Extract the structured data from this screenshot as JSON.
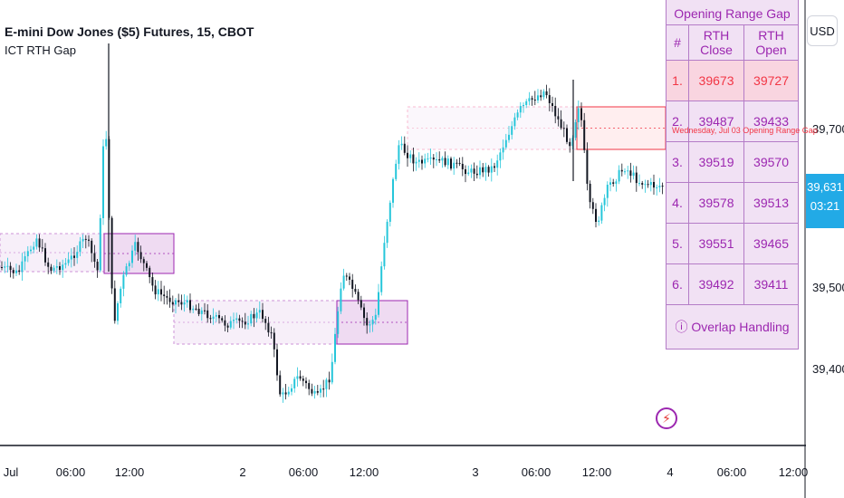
{
  "header": {
    "symbol": "E-mini Dow Jones ($5) Futures, 15, CBOT",
    "indicator": "ICT RTH Gap"
  },
  "price_axis": {
    "currency_button": "USD",
    "labels": [
      "39,700",
      "39,500",
      "39,400"
    ],
    "current_price": "39,631",
    "countdown": "03:21"
  },
  "time_axis": {
    "labels": [
      "Jul",
      "06:00",
      "12:00",
      "2",
      "06:00",
      "12:00",
      "3",
      "06:00",
      "12:00",
      "4",
      "06:00",
      "12:00"
    ]
  },
  "gap_table": {
    "title": "Opening Range Gap",
    "columns": [
      "#",
      "RTH Close",
      "RTH Open"
    ],
    "rows": [
      {
        "idx": "1.",
        "close": "39673",
        "open": "39727"
      },
      {
        "idx": "2.",
        "close": "39487",
        "open": "39433"
      },
      {
        "idx": "3.",
        "close": "39519",
        "open": "39570"
      },
      {
        "idx": "4.",
        "close": "39578",
        "open": "39513"
      },
      {
        "idx": "5.",
        "close": "39551",
        "open": "39465"
      },
      {
        "idx": "6.",
        "close": "39492",
        "open": "39411"
      }
    ],
    "footer": "ⓘ Overlap Handling"
  },
  "gap_annotation": "Wednesday, Jul 03 Opening Range Gap",
  "colors": {
    "up": "#26c6da",
    "down": "#131722",
    "gap_fill": "#e1bee7",
    "gap_border": "#9c27b0",
    "current_gap": "#f23645",
    "price_tag": "#22aae6"
  },
  "icons": {
    "logo": "tradingview-lightning-icon"
  }
}
